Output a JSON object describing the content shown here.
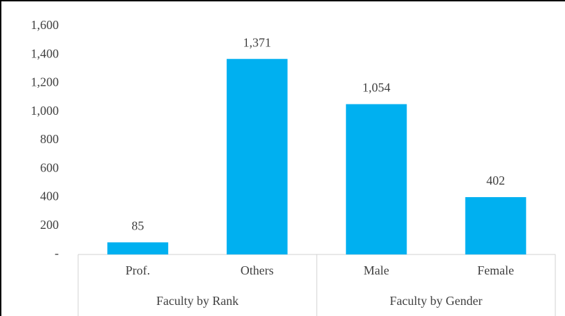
{
  "chart_data": {
    "type": "bar",
    "categories": [
      "Prof.",
      "Others",
      "Male",
      "Female"
    ],
    "groups": [
      "Faculty by Rank",
      "Faculty by Gender"
    ],
    "values": [
      85,
      1371,
      1054,
      402
    ],
    "value_labels": [
      "85",
      "1,371",
      "1,054",
      "402"
    ],
    "color": "#00b0f0",
    "ylim": [
      0,
      1600
    ],
    "yticks": [
      {
        "value": 0,
        "label": "-"
      },
      200,
      400,
      600,
      800,
      {
        "value": 1000,
        "label": "1,000"
      },
      {
        "value": 1200,
        "label": "1,200"
      },
      {
        "value": 1400,
        "label": "1,400"
      },
      {
        "value": 1600,
        "label": "1,600"
      }
    ],
    "grid": false
  }
}
